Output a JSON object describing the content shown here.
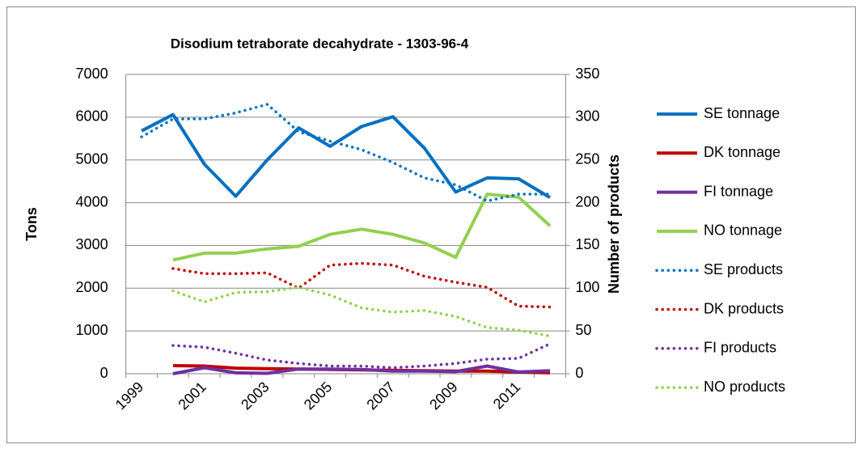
{
  "chart_data": {
    "type": "line",
    "title": "Disodium tetraborate decahydrate - 1303-96-4",
    "y_label": "Tons",
    "y2_label": "Number of products",
    "categories": [
      "1999",
      null,
      "2001",
      null,
      "2003",
      null,
      "2005",
      null,
      "2007",
      null,
      "2009",
      null,
      "2011",
      null
    ],
    "ylim": [
      0,
      7000
    ],
    "yticks": [
      0,
      1000,
      2000,
      3000,
      4000,
      5000,
      6000,
      7000
    ],
    "y2lim": [
      0,
      350
    ],
    "y2ticks": [
      0,
      50,
      100,
      150,
      200,
      250,
      300,
      350
    ],
    "grid": true,
    "legend": "right",
    "series": [
      {
        "name": "SE tonnage",
        "color": "#0070c0",
        "style": "solid",
        "values": [
          5680,
          6060,
          4900,
          4150,
          5000,
          5750,
          5320,
          5780,
          6010,
          5280,
          4250,
          4580,
          4560,
          4120
        ]
      },
      {
        "name": "DK tonnage",
        "color": "#c00000",
        "style": "solid",
        "values": [
          null,
          190,
          180,
          130,
          120,
          110,
          100,
          90,
          80,
          70,
          60,
          60,
          40,
          20
        ]
      },
      {
        "name": "FI tonnage",
        "color": "#7030a0",
        "style": "solid",
        "values": [
          null,
          0,
          140,
          20,
          10,
          110,
          110,
          100,
          60,
          60,
          50,
          180,
          40,
          70
        ]
      },
      {
        "name": "NO tonnage",
        "color": "#92d050",
        "style": "solid",
        "values": [
          null,
          2660,
          2820,
          2820,
          2920,
          2980,
          3260,
          3380,
          3260,
          3060,
          2720,
          4200,
          4130,
          3460
        ]
      },
      {
        "name": "SE products",
        "color": "#0070c0",
        "style": "dotted",
        "axis": "y2",
        "values": [
          277,
          298,
          298,
          305,
          315,
          283,
          272,
          262,
          247,
          229,
          221,
          202,
          210,
          210
        ]
      },
      {
        "name": "DK products",
        "color": "#c00000",
        "style": "dotted",
        "axis": "y2",
        "values": [
          null,
          123,
          117,
          117,
          118,
          100,
          127,
          129,
          127,
          114,
          107,
          101,
          79,
          78
        ]
      },
      {
        "name": "FI products",
        "color": "#7030a0",
        "style": "dotted",
        "axis": "y2",
        "values": [
          null,
          33,
          31,
          24,
          16,
          12,
          9,
          9,
          7,
          9,
          12,
          17,
          18,
          35
        ]
      },
      {
        "name": "NO products",
        "color": "#92d050",
        "style": "dotted",
        "axis": "y2",
        "values": [
          null,
          97,
          84,
          95,
          96,
          101,
          92,
          77,
          72,
          74,
          67,
          54,
          51,
          44
        ]
      }
    ]
  }
}
